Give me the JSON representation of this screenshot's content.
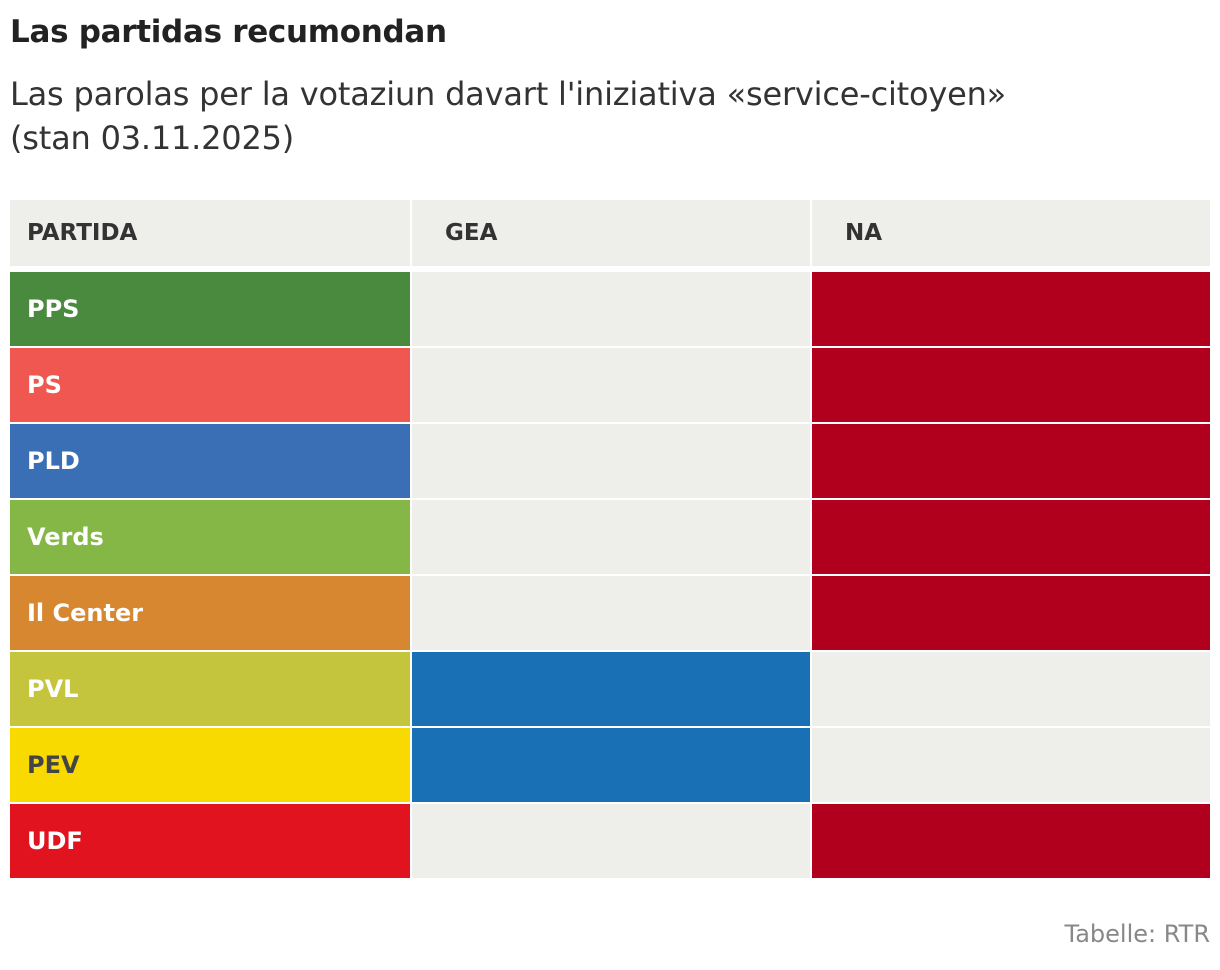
{
  "title": "Las partidas recumondan",
  "subtitle": "Las parolas per la votaziun davart l'iniziativa «service-citoyen» (stan 03.11.2025)",
  "source": "Tabelle: RTR",
  "colors": {
    "header_bg": "#eeeeea",
    "empty_cell": "#eeeeea",
    "yes_color": "#1a70b5",
    "no_color": "#b0001e"
  },
  "chart_data": {
    "type": "table",
    "columns": [
      "PARTIDA",
      "GEA",
      "NA"
    ],
    "rows": [
      {
        "party": "PPS",
        "recommendation": "NA",
        "party_color": "#4a8a3f",
        "text_color": "#ffffff"
      },
      {
        "party": "PS",
        "recommendation": "NA",
        "party_color": "#f05751",
        "text_color": "#ffffff"
      },
      {
        "party": "PLD",
        "recommendation": "NA",
        "party_color": "#3a6fb5",
        "text_color": "#ffffff"
      },
      {
        "party": "Verds",
        "recommendation": "NA",
        "party_color": "#84b746",
        "text_color": "#ffffff"
      },
      {
        "party": "Il Center",
        "recommendation": "NA",
        "party_color": "#d6872f",
        "text_color": "#ffffff"
      },
      {
        "party": "PVL",
        "recommendation": "GEA",
        "party_color": "#c5c43d",
        "text_color": "#ffffff"
      },
      {
        "party": "PEV",
        "recommendation": "GEA",
        "party_color": "#f8d900",
        "text_color": "#444444"
      },
      {
        "party": "UDF",
        "recommendation": "NA",
        "party_color": "#e0131f",
        "text_color": "#ffffff"
      }
    ]
  }
}
